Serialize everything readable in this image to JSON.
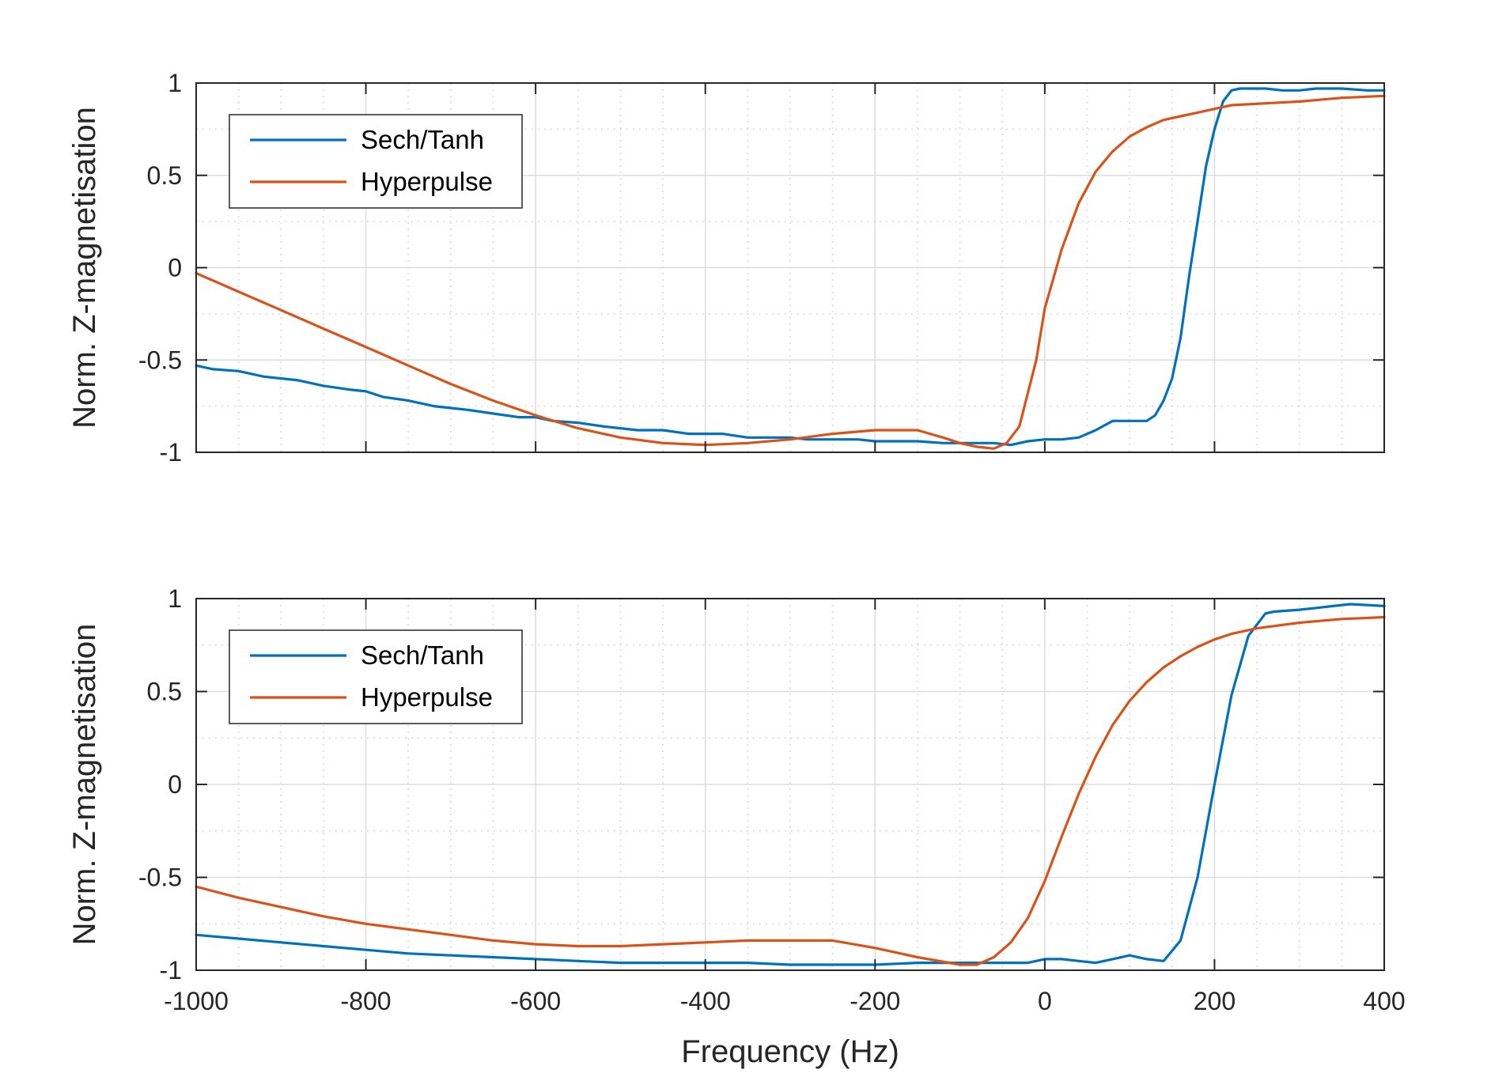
{
  "chart_data": [
    {
      "type": "line",
      "xlabel": "",
      "ylabel": "Norm. Z-magnetisation",
      "xlim": [
        -1000,
        400
      ],
      "ylim": [
        -1,
        1
      ],
      "xticks": [
        -1000,
        -800,
        -600,
        -400,
        -200,
        0,
        200,
        400
      ],
      "yticks": [
        -1,
        -0.5,
        0,
        0.5,
        1
      ],
      "xtick_labels_visible": false,
      "grid": true,
      "minor_grid": true,
      "legend_position": "top-left",
      "series": [
        {
          "name": "Sech/Tanh",
          "color": "#0072bd",
          "x": [
            -1000,
            -980,
            -950,
            -920,
            -900,
            -880,
            -850,
            -820,
            -800,
            -780,
            -750,
            -720,
            -700,
            -680,
            -650,
            -620,
            -600,
            -580,
            -550,
            -520,
            -500,
            -480,
            -450,
            -420,
            -400,
            -380,
            -350,
            -320,
            -300,
            -280,
            -250,
            -220,
            -200,
            -180,
            -150,
            -120,
            -100,
            -80,
            -60,
            -40,
            -20,
            0,
            20,
            40,
            60,
            80,
            100,
            120,
            130,
            140,
            150,
            160,
            170,
            180,
            190,
            200,
            210,
            220,
            230,
            240,
            250,
            260,
            280,
            300,
            320,
            350,
            380,
            400
          ],
          "y": [
            -0.53,
            -0.55,
            -0.56,
            -0.59,
            -0.6,
            -0.61,
            -0.64,
            -0.66,
            -0.67,
            -0.7,
            -0.72,
            -0.75,
            -0.76,
            -0.77,
            -0.79,
            -0.81,
            -0.81,
            -0.83,
            -0.84,
            -0.86,
            -0.87,
            -0.88,
            -0.88,
            -0.9,
            -0.9,
            -0.9,
            -0.92,
            -0.92,
            -0.92,
            -0.93,
            -0.93,
            -0.93,
            -0.94,
            -0.94,
            -0.94,
            -0.95,
            -0.95,
            -0.95,
            -0.95,
            -0.96,
            -0.94,
            -0.93,
            -0.93,
            -0.92,
            -0.88,
            -0.83,
            -0.83,
            -0.83,
            -0.8,
            -0.72,
            -0.6,
            -0.38,
            -0.05,
            0.25,
            0.55,
            0.75,
            0.9,
            0.96,
            0.97,
            0.97,
            0.97,
            0.97,
            0.96,
            0.96,
            0.97,
            0.97,
            0.96,
            0.96
          ]
        },
        {
          "name": "Hyperpulse",
          "color": "#d95319",
          "x": [
            -1000,
            -950,
            -900,
            -850,
            -800,
            -750,
            -700,
            -650,
            -600,
            -550,
            -500,
            -450,
            -400,
            -350,
            -300,
            -250,
            -200,
            -150,
            -120,
            -100,
            -80,
            -60,
            -45,
            -30,
            -10,
            0,
            20,
            40,
            60,
            80,
            100,
            120,
            140,
            160,
            180,
            200,
            220,
            260,
            300,
            350,
            400
          ],
          "y": [
            -0.03,
            -0.13,
            -0.23,
            -0.33,
            -0.43,
            -0.53,
            -0.63,
            -0.72,
            -0.8,
            -0.87,
            -0.92,
            -0.95,
            -0.96,
            -0.95,
            -0.93,
            -0.9,
            -0.88,
            -0.88,
            -0.92,
            -0.95,
            -0.97,
            -0.98,
            -0.95,
            -0.86,
            -0.5,
            -0.22,
            0.1,
            0.35,
            0.52,
            0.63,
            0.71,
            0.76,
            0.8,
            0.82,
            0.84,
            0.86,
            0.88,
            0.89,
            0.9,
            0.92,
            0.93
          ]
        }
      ]
    },
    {
      "type": "line",
      "xlabel": "Frequency (Hz)",
      "ylabel": "Norm. Z-magnetisation",
      "xlim": [
        -1000,
        400
      ],
      "ylim": [
        -1,
        1
      ],
      "xticks": [
        -1000,
        -800,
        -600,
        -400,
        -200,
        0,
        200,
        400
      ],
      "yticks": [
        -1,
        -0.5,
        0,
        0.5,
        1
      ],
      "xtick_labels_visible": true,
      "grid": true,
      "minor_grid": true,
      "legend_position": "top-left",
      "series": [
        {
          "name": "Sech/Tanh",
          "color": "#0072bd",
          "x": [
            -1000,
            -950,
            -900,
            -850,
            -800,
            -750,
            -700,
            -650,
            -600,
            -550,
            -500,
            -450,
            -400,
            -350,
            -300,
            -250,
            -200,
            -150,
            -100,
            -60,
            -40,
            -20,
            0,
            20,
            40,
            60,
            80,
            100,
            120,
            140,
            160,
            180,
            200,
            220,
            240,
            260,
            270,
            300,
            320,
            340,
            360,
            400
          ],
          "y": [
            -0.81,
            -0.83,
            -0.85,
            -0.87,
            -0.89,
            -0.91,
            -0.92,
            -0.93,
            -0.94,
            -0.95,
            -0.96,
            -0.96,
            -0.96,
            -0.96,
            -0.97,
            -0.97,
            -0.97,
            -0.96,
            -0.96,
            -0.96,
            -0.96,
            -0.96,
            -0.94,
            -0.94,
            -0.95,
            -0.96,
            -0.94,
            -0.92,
            -0.94,
            -0.95,
            -0.84,
            -0.5,
            0.0,
            0.48,
            0.8,
            0.92,
            0.93,
            0.94,
            0.95,
            0.96,
            0.97,
            0.96
          ]
        },
        {
          "name": "Hyperpulse",
          "color": "#d95319",
          "x": [
            -1000,
            -950,
            -900,
            -850,
            -800,
            -750,
            -700,
            -650,
            -600,
            -550,
            -500,
            -450,
            -400,
            -350,
            -300,
            -250,
            -200,
            -150,
            -100,
            -80,
            -60,
            -40,
            -20,
            0,
            20,
            40,
            60,
            80,
            100,
            120,
            140,
            160,
            180,
            200,
            220,
            250,
            300,
            350,
            400
          ],
          "y": [
            -0.55,
            -0.61,
            -0.66,
            -0.71,
            -0.75,
            -0.78,
            -0.81,
            -0.84,
            -0.86,
            -0.87,
            -0.87,
            -0.86,
            -0.85,
            -0.84,
            -0.84,
            -0.84,
            -0.88,
            -0.93,
            -0.97,
            -0.97,
            -0.93,
            -0.85,
            -0.72,
            -0.52,
            -0.28,
            -0.05,
            0.15,
            0.32,
            0.45,
            0.55,
            0.63,
            0.69,
            0.74,
            0.78,
            0.81,
            0.84,
            0.87,
            0.89,
            0.9
          ]
        }
      ]
    }
  ]
}
